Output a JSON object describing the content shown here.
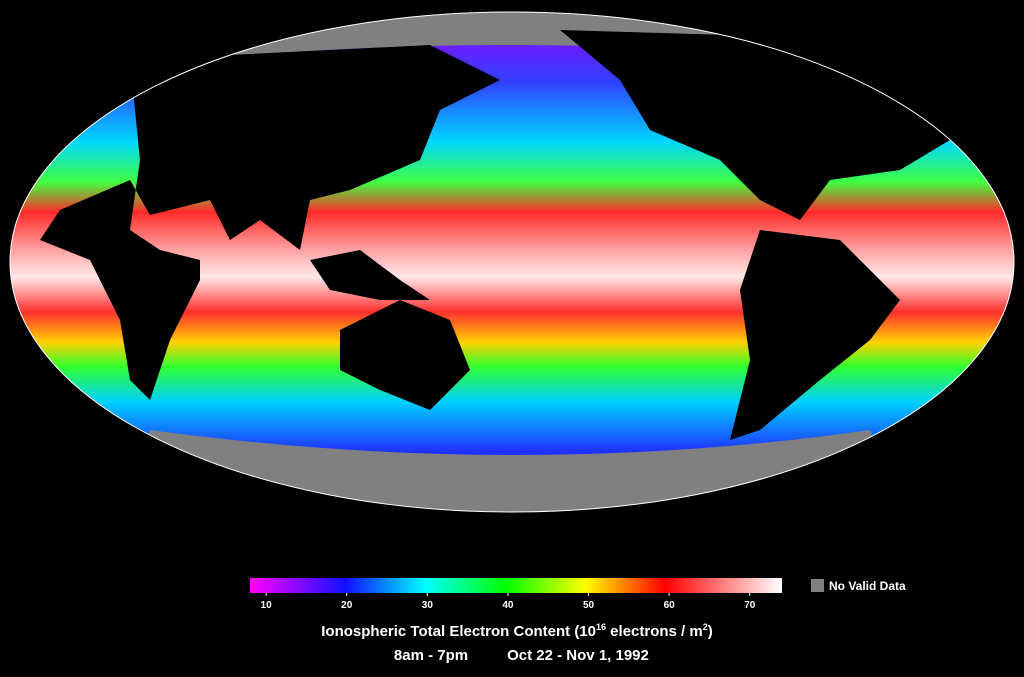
{
  "map": {
    "colorbar": {
      "lim": [
        8,
        74
      ],
      "ticks": [
        10,
        20,
        30,
        40,
        50,
        60,
        70
      ]
    },
    "legend_no_data": "No Valid Data",
    "title_parts": [
      "Ionospheric Total Electron Content  (10",
      "16",
      " electrons / m",
      "2",
      ")"
    ],
    "time_range": "8am - 7pm",
    "date_range": "Oct 22 - Nov 1, 1992"
  }
}
